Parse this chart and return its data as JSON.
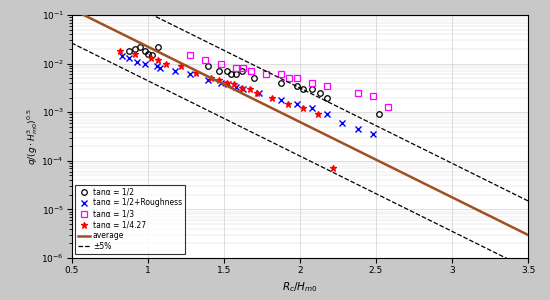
{
  "background_color": "#c8c8c8",
  "plot_bg_color": "#ffffff",
  "grid_color": "#d0d0d0",
  "xlim": [
    0.5,
    3.5
  ],
  "ylim_log": [
    -6,
    -1
  ],
  "avg_slope": -1.55,
  "avg_intercept": -0.1,
  "bounds_factor_log": 0.7,
  "series_tan12": {
    "label": "tanα = 1/2",
    "color": "black",
    "marker": "o",
    "mfc": "none",
    "ms": 4,
    "x": [
      0.88,
      0.92,
      0.95,
      0.98,
      1.0,
      1.03,
      1.07,
      1.4,
      1.47,
      1.52,
      1.55,
      1.58,
      1.62,
      1.7,
      1.88,
      1.98,
      2.02,
      2.08,
      2.13,
      2.18,
      2.52
    ],
    "y": [
      0.018,
      0.02,
      0.022,
      0.018,
      0.016,
      0.015,
      0.022,
      0.009,
      0.007,
      0.007,
      0.006,
      0.006,
      0.007,
      0.005,
      0.004,
      0.0035,
      0.003,
      0.003,
      0.0025,
      0.002,
      0.0009
    ]
  },
  "series_tan12r": {
    "label": "tanα = 1/2+Roughness",
    "color": "blue",
    "marker": "x",
    "ms": 4,
    "x": [
      0.83,
      0.88,
      0.93,
      0.98,
      1.06,
      1.08,
      1.18,
      1.28,
      1.4,
      1.48,
      1.53,
      1.58,
      1.63,
      1.73,
      1.88,
      1.98,
      2.08,
      2.18,
      2.28,
      2.38,
      2.48
    ],
    "y": [
      0.014,
      0.013,
      0.011,
      0.01,
      0.009,
      0.008,
      0.007,
      0.006,
      0.0045,
      0.004,
      0.0038,
      0.0033,
      0.003,
      0.0025,
      0.0018,
      0.0015,
      0.0012,
      0.0009,
      0.0006,
      0.00045,
      0.00035
    ]
  },
  "series_tan13": {
    "label": "tanα = 1/3",
    "color": "#ff00ff",
    "marker": "s",
    "mfc": "none",
    "ms": 4,
    "x": [
      1.28,
      1.38,
      1.48,
      1.58,
      1.63,
      1.68,
      1.78,
      1.88,
      1.93,
      1.98,
      2.08,
      2.18,
      2.38,
      2.48,
      2.58
    ],
    "y": [
      0.015,
      0.012,
      0.01,
      0.008,
      0.008,
      0.007,
      0.006,
      0.006,
      0.005,
      0.005,
      0.004,
      0.0035,
      0.0025,
      0.0022,
      0.0013
    ]
  },
  "series_tan127": {
    "label": "tanα = 1/4.27",
    "color": "red",
    "marker": "*",
    "ms": 5,
    "x": [
      0.82,
      0.92,
      1.02,
      1.07,
      1.12,
      1.22,
      1.32,
      1.42,
      1.47,
      1.52,
      1.57,
      1.62,
      1.67,
      1.72,
      1.82,
      1.92,
      2.02,
      2.12,
      2.22
    ],
    "y": [
      0.018,
      0.016,
      0.013,
      0.012,
      0.01,
      0.009,
      0.0065,
      0.005,
      0.0045,
      0.004,
      0.0038,
      0.0032,
      0.003,
      0.0025,
      0.002,
      0.0015,
      0.0012,
      0.0009,
      7e-05
    ]
  },
  "avg_label": "average",
  "avg_color": "#a05020",
  "avg_lw": 1.8,
  "bounds_label": "±5%",
  "bounds_color": "black",
  "bounds_lw": 0.9,
  "bounds_ls": "--",
  "xlabel": "R_c/H_{m0}",
  "ylabel": "q/(g*H_{m0}^3)^{0.5}",
  "xticks": [
    0.5,
    1.0,
    1.5,
    2.0,
    2.5,
    3.0,
    3.5
  ],
  "legend_fontsize": 5.5,
  "tick_fontsize": 6.5,
  "label_fontsize": 7.5
}
